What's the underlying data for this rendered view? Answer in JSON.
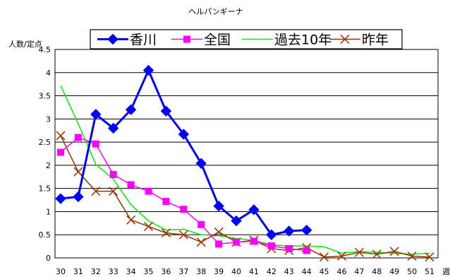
{
  "chart_data": {
    "type": "line",
    "title": "ヘルパンギーナ",
    "ylabel": "人数/定点",
    "xlabel": "週",
    "ylim": [
      0,
      4.5
    ],
    "yticks": [
      "0",
      "0.5",
      "1",
      "1.5",
      "2",
      "2.5",
      "3",
      "3.5",
      "4",
      "4.5"
    ],
    "categories": [
      "30",
      "31",
      "32",
      "33",
      "34",
      "35",
      "36",
      "37",
      "38",
      "39",
      "40",
      "41",
      "42",
      "43",
      "44",
      "45",
      "46",
      "47",
      "48",
      "49",
      "50",
      "51"
    ],
    "grid": "horizontal",
    "legend_position": "top",
    "series": [
      {
        "name": "香川",
        "color": "#0000ff",
        "marker": "diamond",
        "values": [
          1.28,
          1.32,
          3.1,
          2.8,
          3.2,
          4.05,
          3.17,
          2.67,
          2.04,
          1.12,
          0.8,
          1.04,
          0.5,
          0.58,
          0.6,
          null,
          null,
          null,
          null,
          null,
          null,
          null
        ]
      },
      {
        "name": "全国",
        "color": "#ff00ff",
        "marker": "square",
        "values": [
          2.28,
          2.6,
          2.46,
          1.8,
          1.58,
          1.44,
          1.22,
          1.05,
          0.72,
          0.3,
          0.34,
          0.36,
          0.26,
          0.2,
          0.16,
          null,
          null,
          null,
          null,
          null,
          null,
          null
        ]
      },
      {
        "name": "過去10年",
        "color": "#00ee00",
        "marker": "none",
        "values": [
          3.72,
          2.9,
          2.02,
          1.7,
          1.15,
          0.8,
          0.6,
          0.62,
          0.5,
          0.48,
          0.42,
          0.38,
          0.28,
          0.26,
          0.26,
          0.24,
          0.1,
          0.14,
          0.12,
          0.1,
          0.08,
          0.1
        ]
      },
      {
        "name": "昨年",
        "color": "#993300",
        "marker": "x",
        "values": [
          2.64,
          1.86,
          1.44,
          1.44,
          0.82,
          0.68,
          0.54,
          0.5,
          0.34,
          0.56,
          0.34,
          0.38,
          0.2,
          0.16,
          0.22,
          0.02,
          0.04,
          0.12,
          0.08,
          0.14,
          0.04,
          0.02
        ]
      }
    ]
  }
}
